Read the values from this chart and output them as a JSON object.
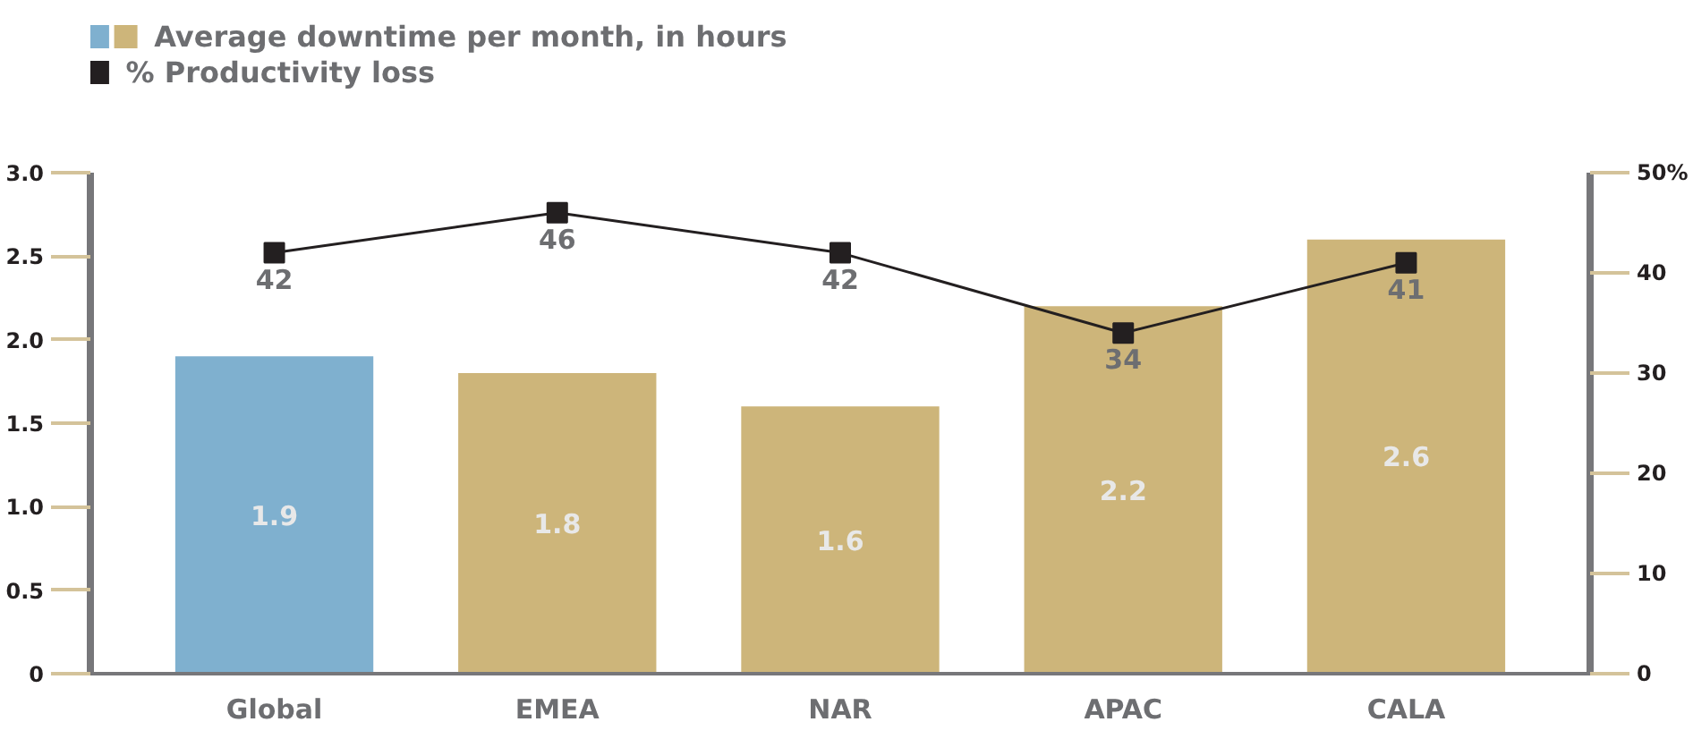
{
  "chart_data": {
    "type": "bar",
    "categories": [
      "Global",
      "EMEA",
      "NAR",
      "APAC",
      "CALA"
    ],
    "series": [
      {
        "type": "bar",
        "name": "Average downtime per month, in hours",
        "colors": [
          "#7fb0cf",
          "#cdb57a",
          "#cdb57a",
          "#cdb57a",
          "#cdb57a"
        ],
        "values": [
          1.9,
          1.8,
          1.6,
          2.2,
          2.6
        ]
      },
      {
        "type": "line",
        "axis": "y2",
        "name": "% Productivity loss",
        "color": "#231f20",
        "values": [
          42,
          46,
          42,
          34,
          41
        ]
      }
    ],
    "ylim": [
      0,
      3
    ],
    "yticks": [
      0,
      0.5,
      {
        "value": 1,
        "label": "1.0"
      },
      1.5,
      {
        "value": 2,
        "label": "2.0"
      },
      2.5,
      {
        "value": 3,
        "label": "3.0"
      }
    ],
    "y2lim": [
      0,
      50
    ],
    "y2ticks": [
      0,
      10,
      20,
      30,
      40,
      {
        "value": 50,
        "label": "50%"
      }
    ],
    "data_labels": true,
    "marker": "square",
    "legend": "top left",
    "grid": false
  }
}
